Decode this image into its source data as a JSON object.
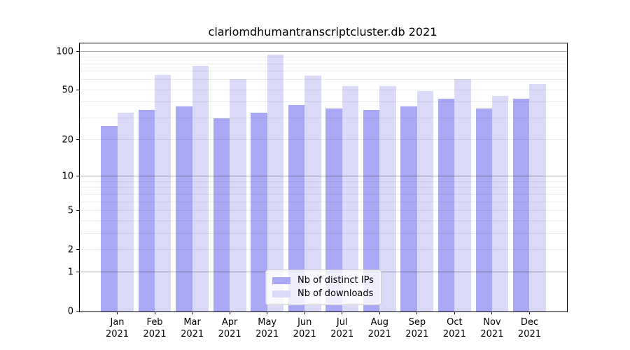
{
  "chart_data": {
    "type": "bar",
    "title": "clariomdhumantranscriptcluster.db 2021",
    "categories": [
      "Jan",
      "Feb",
      "Mar",
      "Apr",
      "May",
      "Jun",
      "Jul",
      "Aug",
      "Sep",
      "Oct",
      "Nov",
      "Dec"
    ],
    "xtick_year": "2021",
    "series": [
      {
        "name": "Nb of distinct IPs",
        "color": "#a8a8f4",
        "values": [
          26,
          35,
          37,
          30,
          33,
          38,
          36,
          35,
          37,
          43,
          36,
          43
        ]
      },
      {
        "name": "Nb of downloads",
        "color": "#dadaf8",
        "values": [
          33,
          66,
          78,
          61,
          95,
          65,
          54,
          54,
          49,
          61,
          45,
          56
        ]
      }
    ],
    "xlabel": "",
    "ylabel": "",
    "yscale": "log1p",
    "ylim": [
      0,
      115
    ],
    "yticks": [
      0,
      1,
      2,
      5,
      10,
      20,
      50,
      100
    ],
    "grid_major": [
      1,
      10,
      100
    ],
    "grid_minor": [
      2,
      3,
      4,
      5,
      6,
      7,
      8,
      9,
      20,
      30,
      40,
      50,
      60,
      70,
      80,
      90
    ],
    "grid": true,
    "legend_position": "lower center",
    "axis_color": "#000000",
    "background_color": "#ffffff"
  }
}
